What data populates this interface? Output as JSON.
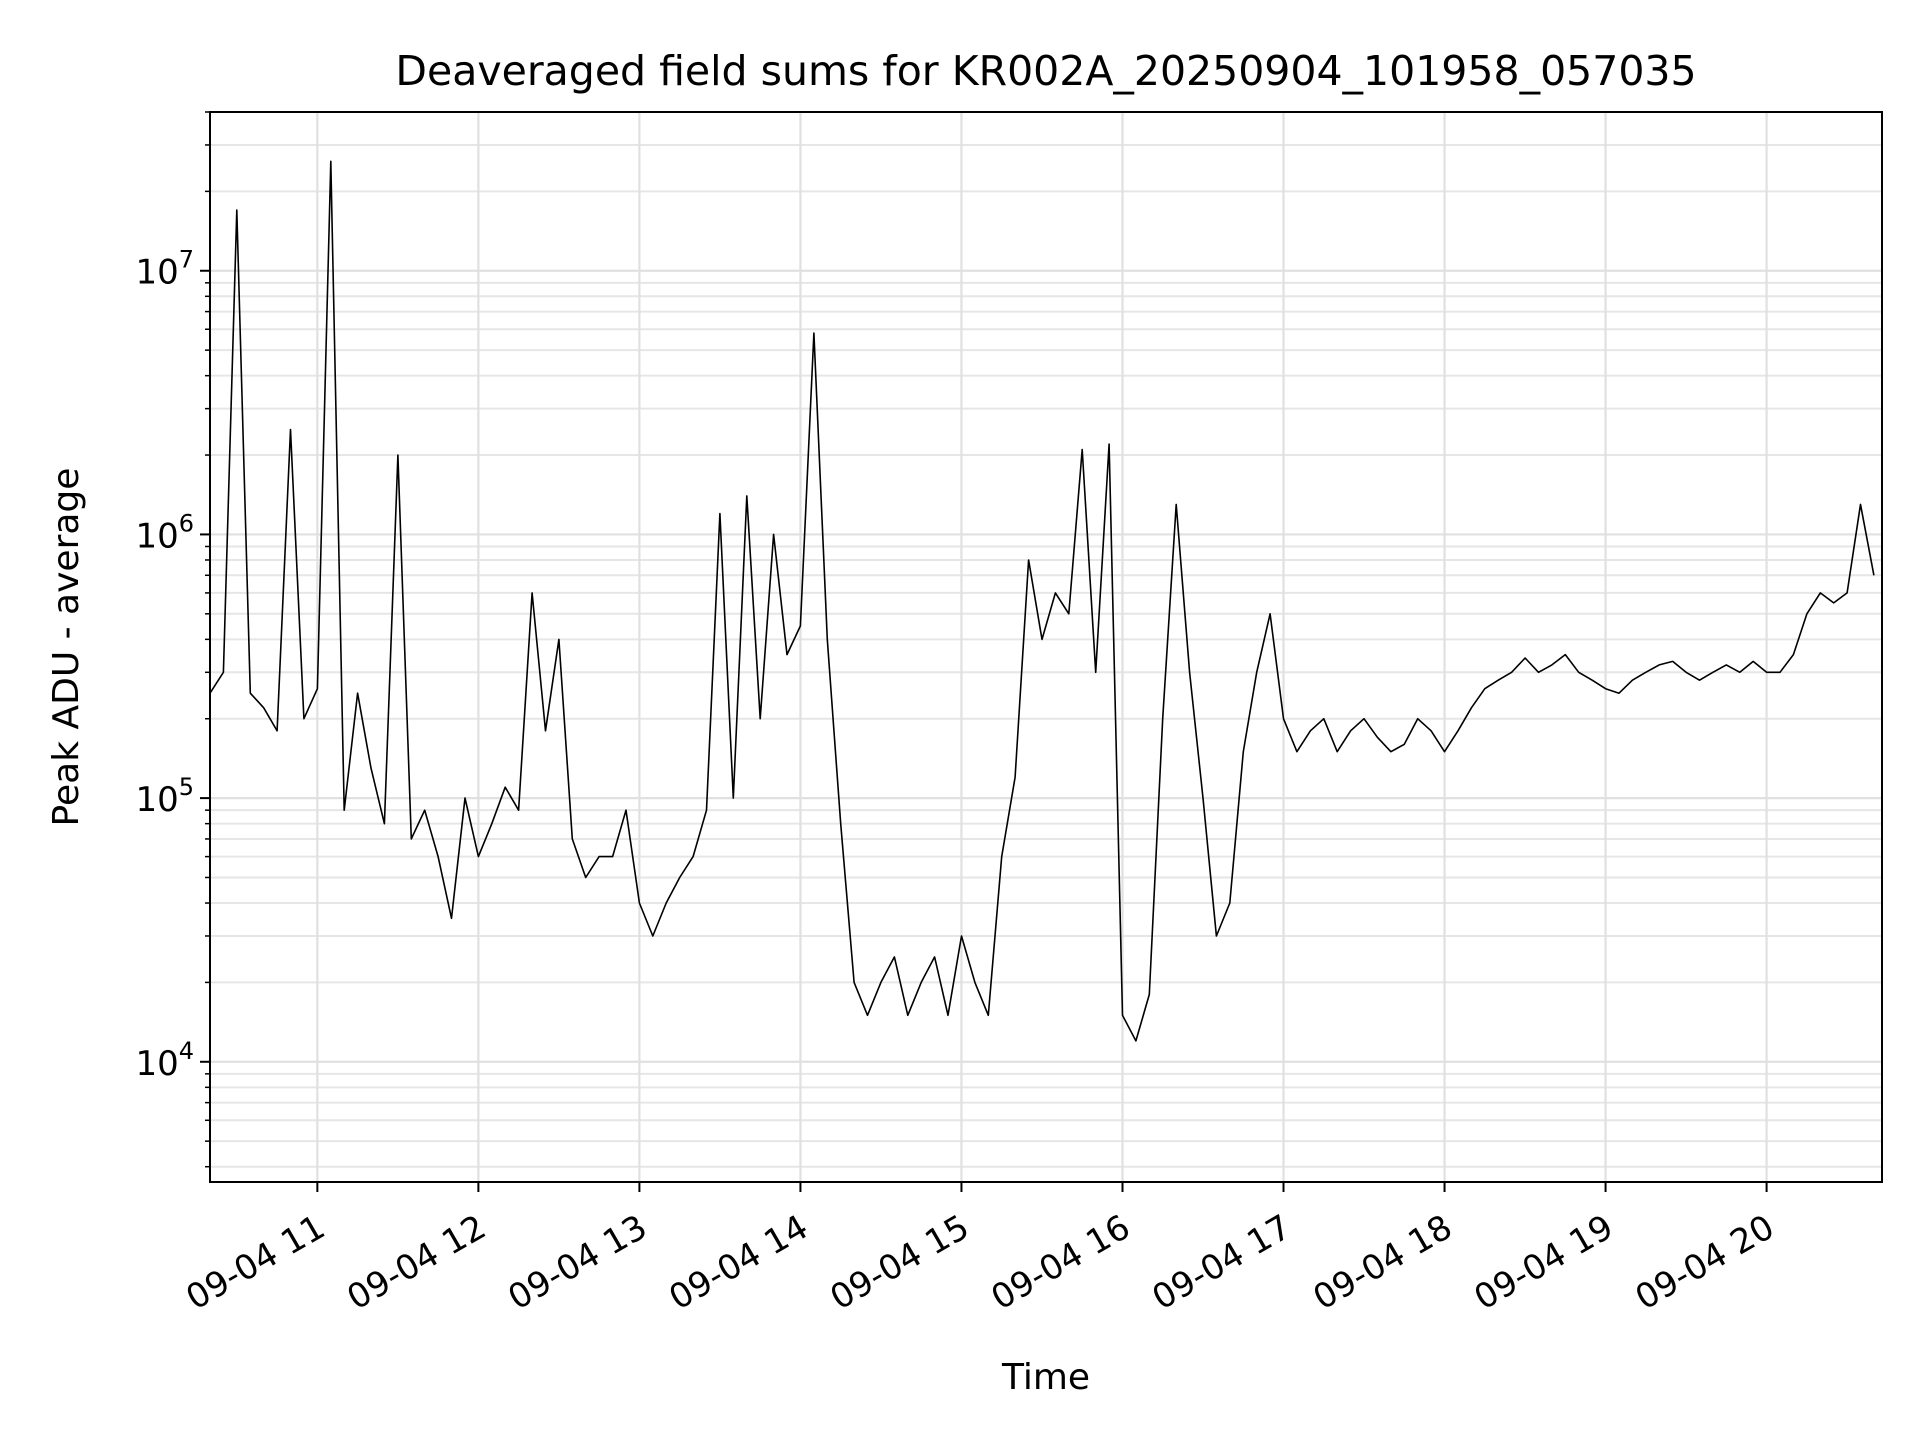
{
  "chart_data": {
    "type": "line",
    "title": "Deaveraged field sums for KR002A_20250904_101958_057035",
    "xlabel": "Time",
    "ylabel": "Peak ADU - average",
    "yscale": "log",
    "ylim": [
      3500,
      40000000
    ],
    "xlim": [
      "2025-09-04 10:20",
      "2025-09-04 20:43"
    ],
    "grid": true,
    "line_color": "#000000",
    "x_ticks": [
      "09-04 11",
      "09-04 12",
      "09-04 13",
      "09-04 14",
      "09-04 15",
      "09-04 16",
      "09-04 17",
      "09-04 18",
      "09-04 19",
      "09-04 20"
    ],
    "y_ticks": [
      {
        "value": 10000,
        "base": "10",
        "exp": "4"
      },
      {
        "value": 100000,
        "base": "10",
        "exp": "5"
      },
      {
        "value": 1000000,
        "base": "10",
        "exp": "6"
      },
      {
        "value": 10000000,
        "base": "10",
        "exp": "7"
      }
    ],
    "series": [
      {
        "x": [
          "2025-09-04 10:20",
          "2025-09-04 10:25",
          "2025-09-04 10:30",
          "2025-09-04 10:35",
          "2025-09-04 10:40",
          "2025-09-04 10:45",
          "2025-09-04 10:50",
          "2025-09-04 10:55",
          "2025-09-04 11:00",
          "2025-09-04 11:05",
          "2025-09-04 11:10",
          "2025-09-04 11:15",
          "2025-09-04 11:20",
          "2025-09-04 11:25",
          "2025-09-04 11:30",
          "2025-09-04 11:35",
          "2025-09-04 11:40",
          "2025-09-04 11:45",
          "2025-09-04 11:50",
          "2025-09-04 11:55",
          "2025-09-04 12:00",
          "2025-09-04 12:05",
          "2025-09-04 12:10",
          "2025-09-04 12:15",
          "2025-09-04 12:20",
          "2025-09-04 12:25",
          "2025-09-04 12:30",
          "2025-09-04 12:35",
          "2025-09-04 12:40",
          "2025-09-04 12:45",
          "2025-09-04 12:50",
          "2025-09-04 12:55",
          "2025-09-04 13:00",
          "2025-09-04 13:05",
          "2025-09-04 13:10",
          "2025-09-04 13:15",
          "2025-09-04 13:20",
          "2025-09-04 13:25",
          "2025-09-04 13:30",
          "2025-09-04 13:35",
          "2025-09-04 13:40",
          "2025-09-04 13:45",
          "2025-09-04 13:50",
          "2025-09-04 13:55",
          "2025-09-04 14:00",
          "2025-09-04 14:05",
          "2025-09-04 14:10",
          "2025-09-04 14:15",
          "2025-09-04 14:20",
          "2025-09-04 14:25",
          "2025-09-04 14:30",
          "2025-09-04 14:35",
          "2025-09-04 14:40",
          "2025-09-04 14:45",
          "2025-09-04 14:50",
          "2025-09-04 14:55",
          "2025-09-04 15:00",
          "2025-09-04 15:05",
          "2025-09-04 15:10",
          "2025-09-04 15:15",
          "2025-09-04 15:20",
          "2025-09-04 15:25",
          "2025-09-04 15:30",
          "2025-09-04 15:35",
          "2025-09-04 15:40",
          "2025-09-04 15:45",
          "2025-09-04 15:50",
          "2025-09-04 15:55",
          "2025-09-04 16:00",
          "2025-09-04 16:05",
          "2025-09-04 16:10",
          "2025-09-04 16:15",
          "2025-09-04 16:20",
          "2025-09-04 16:25",
          "2025-09-04 16:30",
          "2025-09-04 16:35",
          "2025-09-04 16:40",
          "2025-09-04 16:45",
          "2025-09-04 16:50",
          "2025-09-04 16:55",
          "2025-09-04 17:00",
          "2025-09-04 17:05",
          "2025-09-04 17:10",
          "2025-09-04 17:15",
          "2025-09-04 17:20",
          "2025-09-04 17:25",
          "2025-09-04 17:30",
          "2025-09-04 17:35",
          "2025-09-04 17:40",
          "2025-09-04 17:45",
          "2025-09-04 17:50",
          "2025-09-04 17:55",
          "2025-09-04 18:00",
          "2025-09-04 18:05",
          "2025-09-04 18:10",
          "2025-09-04 18:15",
          "2025-09-04 18:20",
          "2025-09-04 18:25",
          "2025-09-04 18:30",
          "2025-09-04 18:35",
          "2025-09-04 18:40",
          "2025-09-04 18:45",
          "2025-09-04 18:50",
          "2025-09-04 18:55",
          "2025-09-04 19:00",
          "2025-09-04 19:05",
          "2025-09-04 19:10",
          "2025-09-04 19:15",
          "2025-09-04 19:20",
          "2025-09-04 19:25",
          "2025-09-04 19:30",
          "2025-09-04 19:35",
          "2025-09-04 19:40",
          "2025-09-04 19:45",
          "2025-09-04 19:50",
          "2025-09-04 19:55",
          "2025-09-04 20:00",
          "2025-09-04 20:05",
          "2025-09-04 20:10",
          "2025-09-04 20:15",
          "2025-09-04 20:20",
          "2025-09-04 20:25",
          "2025-09-04 20:30",
          "2025-09-04 20:35",
          "2025-09-04 20:40"
        ],
        "values": [
          250000,
          300000,
          17000000,
          250000,
          220000,
          180000,
          2500000,
          200000,
          260000,
          26000000,
          90000,
          250000,
          130000,
          80000,
          2000000,
          70000,
          90000,
          60000,
          35000,
          100000,
          60000,
          80000,
          110000,
          90000,
          600000,
          180000,
          400000,
          70000,
          50000,
          60000,
          60000,
          90000,
          40000,
          30000,
          40000,
          50000,
          60000,
          90000,
          1200000,
          100000,
          1400000,
          200000,
          1000000,
          350000,
          450000,
          5800000,
          400000,
          80000,
          20000,
          15000,
          20000,
          25000,
          15000,
          20000,
          25000,
          15000,
          30000,
          20000,
          15000,
          60000,
          120000,
          800000,
          400000,
          600000,
          500000,
          2100000,
          300000,
          2200000,
          15000,
          12000,
          18000,
          200000,
          1300000,
          300000,
          100000,
          30000,
          40000,
          150000,
          300000,
          500000,
          200000,
          150000,
          180000,
          200000,
          150000,
          180000,
          200000,
          170000,
          150000,
          160000,
          200000,
          180000,
          150000,
          180000,
          220000,
          260000,
          280000,
          300000,
          340000,
          300000,
          320000,
          350000,
          300000,
          280000,
          260000,
          250000,
          280000,
          300000,
          320000,
          330000,
          300000,
          280000,
          300000,
          320000,
          300000,
          330000,
          300000,
          300000,
          350000,
          500000,
          600000,
          550000,
          600000,
          1300000,
          700000
        ]
      }
    ]
  }
}
